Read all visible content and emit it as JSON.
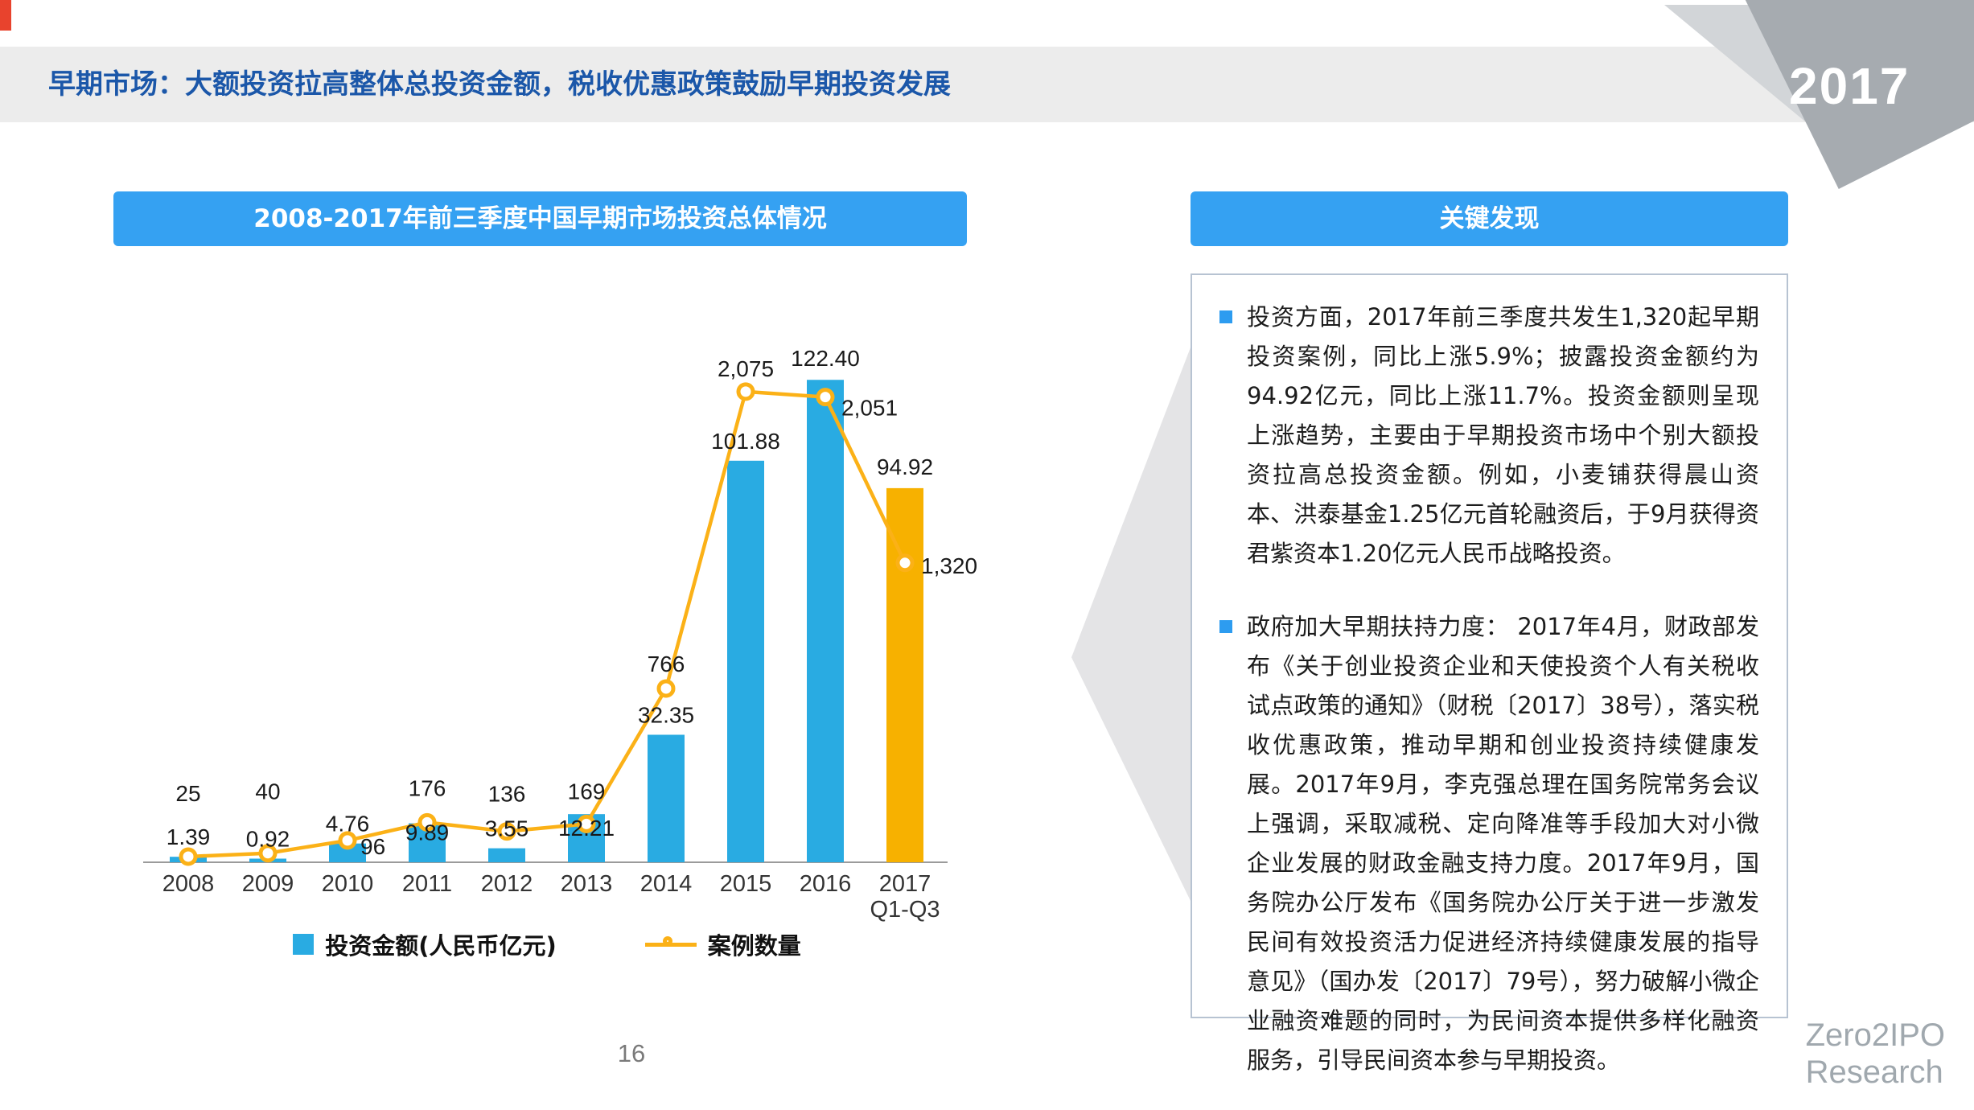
{
  "header": {
    "title": "早期市场：大额投资拉高整体总投资金额，税收优惠政策鼓励早期投资发展",
    "year_badge": "2017"
  },
  "chart_section": {
    "title": "2008-2017年前三季度中国早期市场投资总体情况"
  },
  "chart_data": {
    "type": "bar",
    "subtype": "bar+line combo",
    "title": "2008-2017年前三季度中国早期市场投资总体情况",
    "categories": [
      "2008",
      "2009",
      "2010",
      "2011",
      "2012",
      "2013",
      "2014",
      "2015",
      "2016",
      "2017\nQ1-Q3"
    ],
    "series": [
      {
        "name": "投资金额(人民币亿元)",
        "type": "bar",
        "values": [
          1.39,
          0.92,
          4.76,
          9.89,
          3.55,
          12.21,
          32.35,
          101.88,
          122.4,
          94.92
        ],
        "labels": [
          "1.39",
          "0.92",
          "4.76",
          "9.89",
          "3.55",
          "12.21",
          "32.35",
          "101.88",
          "122.40",
          "94.92"
        ]
      },
      {
        "name": "案例数量",
        "type": "line",
        "values": [
          25,
          40,
          96,
          176,
          136,
          169,
          766,
          2075,
          2051,
          1320
        ],
        "labels": [
          "25",
          "40",
          "96",
          "176",
          "136",
          "169",
          "766",
          "2,075",
          "2,051",
          "1,320"
        ]
      }
    ],
    "highlight_last_bar": true,
    "legend": [
      "投资金额(人民币亿元)",
      "案例数量"
    ],
    "legend_position": "bottom",
    "grid": false,
    "ylim_bar": [
      0,
      140
    ],
    "ylim_line": [
      0,
      2600
    ]
  },
  "colors": {
    "bar_blue": "#29ABE2",
    "highlight_bar_yellow": "#F7B100",
    "line_yellow": "#FBB117",
    "section_bar_blue": "#35A1F2",
    "header_title_blue": "#1B57A9",
    "bullet_blue": "#2D9CF0",
    "banner_gray_dark": "#A6ABB0",
    "banner_gray_light": "#D2D5D8",
    "arrow_gray": "#E4E4E6",
    "box_border": "#B7C3D2",
    "red_corner": "#E8432D"
  },
  "findings": {
    "title": "关键发现",
    "bullets": [
      "投资方面，2017年前三季度共发生1,320起早期投资案例，同比上涨5.9%；披露投资金额约为94.92亿元，同比上涨11.7%。投资金额则呈现上涨趋势，主要由于早期投资市场中个别大额投资拉高总投资金额。例如，小麦铺获得晨山资本、洪泰基金1.25亿元首轮融资后，于9月获得资君紫资本1.20亿元人民币战略投资。",
      "政府加大早期扶持力度： 2017年4月，财政部发布《关于创业投资企业和天使投资个人有关税收试点政策的通知》（财税〔2017〕38号），落实税收优惠政策，推动早期和创业投资持续健康发展。2017年9月，李克强总理在国务院常务会议上强调，采取减税、定向降准等手段加大对小微企业发展的财政金融支持力度。2017年9月，国务院办公厅发布《国务院办公厅关于进一步激发民间有效投资活力促进经济持续健康发展的指导意见》（国办发〔2017〕79号），努力破解小微企业融资难题的同时，为民间资本提供多样化融资服务，引导民间资本参与早期投资。"
    ]
  },
  "footer": {
    "page_number": "16",
    "logo_line1": "Zero2IPO",
    "logo_line2": "Research"
  }
}
